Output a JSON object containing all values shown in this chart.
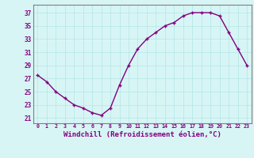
{
  "x": [
    0,
    1,
    2,
    3,
    4,
    5,
    6,
    7,
    8,
    9,
    10,
    11,
    12,
    13,
    14,
    15,
    16,
    17,
    18,
    19,
    20,
    21,
    22,
    23
  ],
  "y": [
    27.5,
    26.5,
    25.0,
    24.0,
    23.0,
    22.5,
    21.8,
    21.4,
    22.5,
    26.0,
    29.0,
    31.5,
    33.0,
    34.0,
    35.0,
    35.5,
    36.5,
    37.0,
    37.0,
    37.0,
    36.5,
    34.0,
    31.5,
    29.0
  ],
  "line_color": "#800080",
  "marker": "+",
  "marker_size": 3.5,
  "linewidth": 1.0,
  "xlabel": "Windchill (Refroidissement éolien,°C)",
  "xlabel_fontsize": 6.5,
  "ylabel_ticks": [
    21,
    23,
    25,
    27,
    29,
    31,
    33,
    35,
    37
  ],
  "xtick_labels": [
    "0",
    "1",
    "2",
    "3",
    "4",
    "5",
    "6",
    "7",
    "8",
    "9",
    "10",
    "11",
    "12",
    "13",
    "14",
    "15",
    "16",
    "17",
    "18",
    "19",
    "20",
    "21",
    "22",
    "23"
  ],
  "xlim": [
    -0.5,
    23.5
  ],
  "ylim": [
    20.2,
    38.2
  ],
  "bg_color": "#d8f5f5",
  "grid_color": "#b8e8e8",
  "tick_color": "#800080",
  "label_color": "#800080",
  "spine_color": "#808080"
}
